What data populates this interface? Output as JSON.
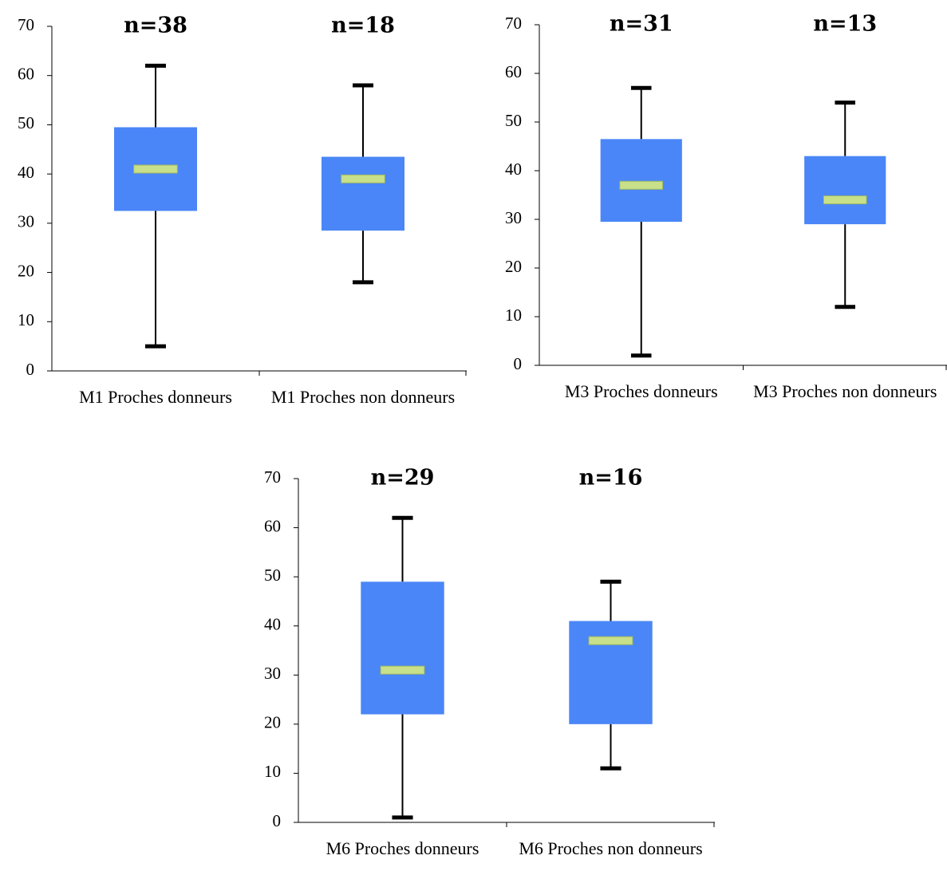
{
  "chart_data": [
    {
      "type": "box",
      "categories": [
        "M1 Proches donneurs",
        "M1 Proches non donneurs"
      ],
      "annotations": [
        "n=38",
        "n=18"
      ],
      "min": [
        5,
        18
      ],
      "q1": [
        32.5,
        28.5
      ],
      "median": [
        41,
        39
      ],
      "q3": [
        49.5,
        43.5
      ],
      "max": [
        62,
        58
      ],
      "color": "#4a86f7",
      "median_color": "#c9e08a",
      "whisker_color": "#000000",
      "ylim": [
        0,
        70
      ],
      "yticks": [
        0,
        10,
        20,
        30,
        40,
        50,
        60,
        70
      ]
    },
    {
      "type": "box",
      "categories": [
        "M3 Proches donneurs",
        "M3 Proches non donneurs"
      ],
      "annotations": [
        "n=31",
        "n=13"
      ],
      "min": [
        2,
        12
      ],
      "q1": [
        29.5,
        29
      ],
      "median": [
        37,
        34
      ],
      "q3": [
        46.5,
        43
      ],
      "max": [
        57,
        54
      ],
      "color": "#4a86f7",
      "median_color": "#c9e08a",
      "whisker_color": "#000000",
      "ylim": [
        0,
        70
      ],
      "yticks": [
        0,
        10,
        20,
        30,
        40,
        50,
        60,
        70
      ]
    },
    {
      "type": "box",
      "categories": [
        "M6 Proches donneurs",
        "M6 Proches non donneurs"
      ],
      "annotations": [
        "n=29",
        "n=16"
      ],
      "min": [
        1,
        11
      ],
      "q1": [
        22,
        20
      ],
      "median": [
        31,
        37
      ],
      "q3": [
        49,
        41
      ],
      "max": [
        62,
        49
      ],
      "color": "#4a86f7",
      "median_color": "#c9e08a",
      "whisker_color": "#000000",
      "ylim": [
        0,
        70
      ],
      "yticks": [
        0,
        10,
        20,
        30,
        40,
        50,
        60,
        70
      ]
    }
  ]
}
